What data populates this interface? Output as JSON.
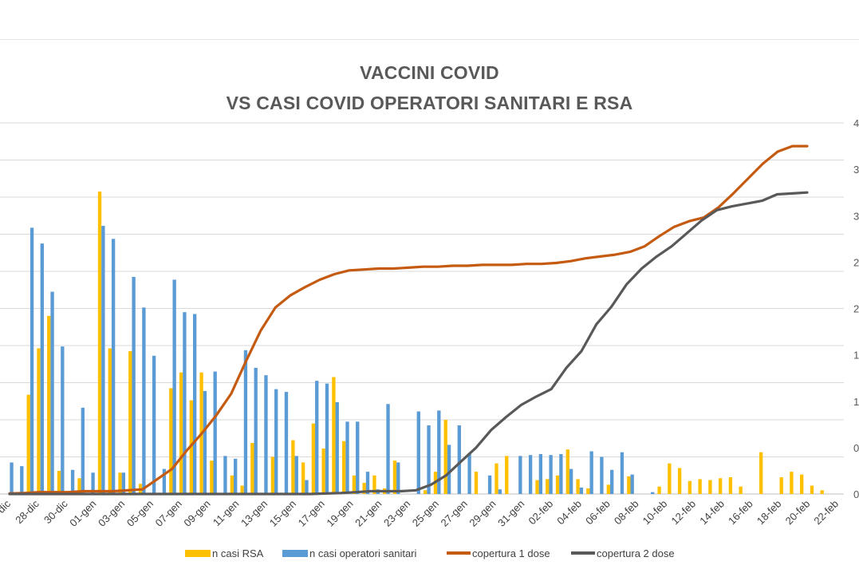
{
  "chart_data": {
    "type": "bar",
    "title": "VACCINI COVID",
    "subtitle": "VS CASI COVID OPERATORI SANITARI  E  RSA",
    "x_tick_labels": [
      "dic",
      "28-dic",
      "30-dic",
      "01-gen",
      "03-gen",
      "05-gen",
      "07-gen",
      "09-gen",
      "11-gen",
      "13-gen",
      "15-gen",
      "17-gen",
      "19-gen",
      "21-gen",
      "23-gen",
      "25-gen",
      "27-gen",
      "29-gen",
      "31-gen",
      "02-feb",
      "04-feb",
      "06-feb",
      "08-feb",
      "10-feb",
      "12-feb",
      "14-feb",
      "16-feb",
      "18-feb",
      "20-feb",
      "22-feb"
    ],
    "right_tick_labels": [
      "0",
      "0",
      "1",
      "1",
      "2",
      "2",
      "3",
      "3",
      "4"
    ],
    "ylim": [
      0,
      40
    ],
    "grid": true,
    "legend": [
      {
        "name": "n casi RSA",
        "color": "#FFC000",
        "kind": "bar"
      },
      {
        "name": "n casi operatori sanitari",
        "color": "#5B9BD5",
        "kind": "bar"
      },
      {
        "name": "copertura 1 dose",
        "color": "#C55A11",
        "kind": "line"
      },
      {
        "name": "copertura 2 dose",
        "color": "#595959",
        "kind": "line"
      }
    ],
    "series": [
      {
        "name": "n casi RSA",
        "values": [
          0,
          0,
          10.7,
          15.7,
          19.2,
          2.5,
          0,
          1.7,
          0,
          32.6,
          15.7,
          2.3,
          15.4,
          1.1,
          0,
          0,
          11.4,
          13.1,
          10.1,
          13.1,
          3.6,
          0,
          2.0,
          0.9,
          5.5,
          0,
          4.0,
          0,
          5.8,
          3.4,
          7.6,
          4.9,
          12.6,
          5.7,
          2.0,
          1.2,
          2.0,
          0.6,
          3.6,
          0,
          0,
          0.4,
          2.4,
          8.0,
          0,
          0,
          2.4,
          0,
          3.3,
          4.1,
          0,
          0,
          1.5,
          1.6,
          2.0,
          4.8,
          1.6,
          0.6,
          0,
          1.0,
          0,
          1.9,
          0,
          0,
          0.8,
          3.3,
          2.8,
          1.4,
          1.6,
          1.5,
          1.7,
          1.8,
          0.8,
          0,
          4.5,
          0,
          1.8,
          2.4,
          2.1,
          0.9,
          0.4,
          0
        ]
      },
      {
        "name": "n casi operatori sanitari",
        "values": [
          3.4,
          3.0,
          28.7,
          27.0,
          21.8,
          15.9,
          2.6,
          9.3,
          2.3,
          28.9,
          27.5,
          2.3,
          23.4,
          20.1,
          14.9,
          2.7,
          23.1,
          19.6,
          19.4,
          11.1,
          13.2,
          4.1,
          3.8,
          15.5,
          13.6,
          12.8,
          11.3,
          11.0,
          4.1,
          1.5,
          12.2,
          11.9,
          9.9,
          7.8,
          7.8,
          2.4,
          0.5,
          9.7,
          3.4,
          0,
          8.9,
          7.4,
          9.0,
          5.3,
          7.4,
          4.3,
          0,
          2.0,
          0.5,
          0,
          4.1,
          4.2,
          4.3,
          4.2,
          4.3,
          2.7,
          0.7,
          4.6,
          4.0,
          2.6,
          4.5,
          2.1,
          0,
          0.2,
          0
        ]
      },
      {
        "name": "copertura 1 dose",
        "values": [
          0.05,
          0.1,
          0.2,
          0.2,
          0.2,
          0.3,
          0.3,
          0.3,
          0.4,
          0.5,
          1.6,
          2.7,
          4.7,
          6.5,
          8.5,
          10.8,
          14.3,
          17.6,
          20.1,
          21.4,
          22.3,
          23.1,
          23.7,
          24.1,
          24.2,
          24.3,
          24.3,
          24.4,
          24.5,
          24.5,
          24.6,
          24.6,
          24.7,
          24.7,
          24.7,
          24.8,
          24.8,
          24.9,
          25.1,
          25.4,
          25.6,
          25.8,
          26.1,
          26.7,
          27.8,
          28.8,
          29.4,
          29.8,
          30.9,
          32.4,
          34.0,
          35.6,
          36.9,
          37.5,
          37.5
        ]
      },
      {
        "name": "copertura 2 dose",
        "values": [
          0.0,
          0.0,
          0.0,
          0.0,
          0.0,
          0.0,
          0.0,
          0.0,
          0.0,
          0.0,
          0.0,
          0.0,
          0.0,
          0.0,
          0.0,
          0.0,
          0.0,
          0.0,
          0.0,
          0.0,
          0.0,
          0.05,
          0.1,
          0.2,
          0.3,
          0.3,
          0.3,
          0.4,
          1.0,
          2.0,
          3.5,
          5.0,
          6.9,
          8.3,
          9.6,
          10.5,
          11.3,
          13.6,
          15.4,
          18.3,
          20.2,
          22.6,
          24.3,
          25.6,
          26.7,
          28.1,
          29.5,
          30.6,
          31.0,
          31.3,
          31.6,
          32.3,
          32.4,
          32.5
        ]
      }
    ]
  }
}
